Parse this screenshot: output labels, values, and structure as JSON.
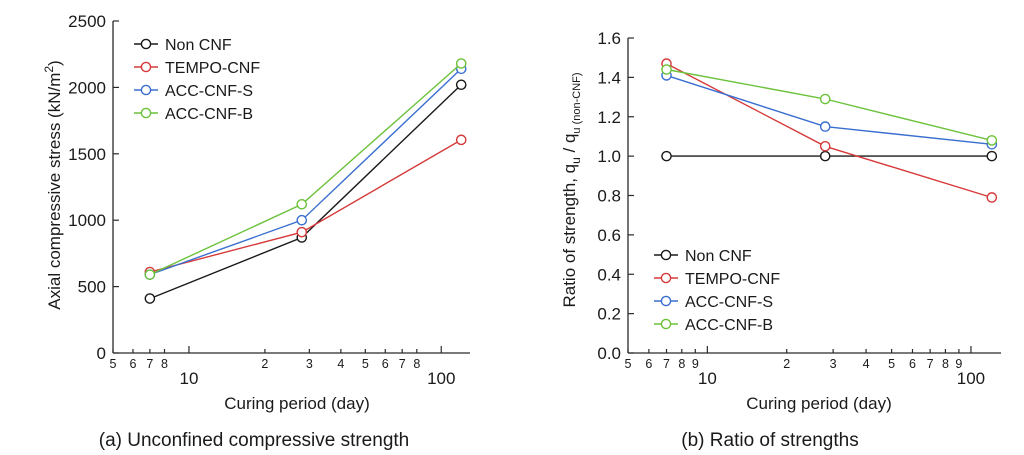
{
  "series_colors": {
    "Non CNF": "#1a1a1a",
    "TEMPO-CNF": "#d63a3a",
    "ACC-CNF-S": "#3a6fd0",
    "ACC-CNF-B": "#6cc23c"
  },
  "chart_data": [
    {
      "type": "line",
      "caption": "(a) Unconfined compressive strength",
      "xlabel": "Curing period (day)",
      "ylabel": "Axial compressive stress (kN/m²)",
      "ylabel_main": "Axial compressive stress (kN/m",
      "ylabel_sup": "2",
      "ylabel_close": ")",
      "x_scale": "log",
      "xlim": [
        5,
        130
      ],
      "x_major_ticks": [
        10,
        100
      ],
      "x_major_tick_labels": [
        "10",
        "100"
      ],
      "x_minor_ticks": [
        5,
        6,
        7,
        8,
        20,
        30,
        40,
        50,
        60,
        70,
        80
      ],
      "x_minor_tick_labels": [
        "5",
        "6",
        "7",
        "8",
        "2",
        "3",
        "4",
        "5",
        "6",
        "7",
        "8"
      ],
      "ylim": [
        0,
        2500
      ],
      "y_ticks": [
        0,
        500,
        1000,
        1500,
        2000,
        2500
      ],
      "y_tick_labels": [
        "0",
        "500",
        "1000",
        "1500",
        "2000",
        "2500"
      ],
      "x": [
        7,
        28,
        120
      ],
      "legend_position": "top-left",
      "series": [
        {
          "name": "Non CNF",
          "values": [
            410,
            870,
            2020
          ]
        },
        {
          "name": "TEMPO-CNF",
          "values": [
            610,
            910,
            1605
          ]
        },
        {
          "name": "ACC-CNF-S",
          "values": [
            590,
            1000,
            2140
          ]
        },
        {
          "name": "ACC-CNF-B",
          "values": [
            590,
            1120,
            2180
          ]
        }
      ]
    },
    {
      "type": "line",
      "caption": "(b) Ratio of strengths",
      "xlabel": "Curing period (day)",
      "ylabel": "Ratio of strength, qu / qu (non-CNF)",
      "ylabel_main": "Ratio of strength, q",
      "ylabel_sub1": "u",
      "ylabel_mid": " / q",
      "ylabel_sub2": "u (non-CNF)",
      "x_scale": "log",
      "xlim": [
        5,
        130
      ],
      "x_major_ticks": [
        10,
        100
      ],
      "x_major_tick_labels": [
        "10",
        "100"
      ],
      "x_minor_ticks": [
        5,
        6,
        7,
        8,
        9,
        20,
        30,
        40,
        50,
        60,
        70,
        80,
        90
      ],
      "x_minor_tick_labels": [
        "5",
        "6",
        "7",
        "8",
        "9",
        "2",
        "3",
        "4",
        "5",
        "6",
        "7",
        "8",
        "9"
      ],
      "ylim": [
        0,
        1.6
      ],
      "y_ticks": [
        0,
        0.2,
        0.4,
        0.6,
        0.8,
        1.0,
        1.2,
        1.4,
        1.6
      ],
      "y_tick_labels": [
        "0.0",
        "0.2",
        "0.4",
        "0.6",
        "0.8",
        "1.0",
        "1.2",
        "1.4",
        "1.6"
      ],
      "x": [
        7,
        28,
        120
      ],
      "legend_position": "bottom-left",
      "series": [
        {
          "name": "Non CNF",
          "values": [
            1.0,
            1.0,
            1.0
          ]
        },
        {
          "name": "TEMPO-CNF",
          "values": [
            1.47,
            1.05,
            0.79
          ]
        },
        {
          "name": "ACC-CNF-S",
          "values": [
            1.41,
            1.15,
            1.06
          ]
        },
        {
          "name": "ACC-CNF-B",
          "values": [
            1.44,
            1.29,
            1.08
          ]
        }
      ]
    }
  ]
}
